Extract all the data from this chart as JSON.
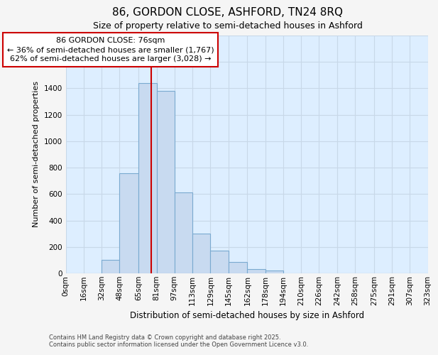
{
  "title_line1": "86, GORDON CLOSE, ASHFORD, TN24 8RQ",
  "title_line2": "Size of property relative to semi-detached houses in Ashford",
  "xlabel": "Distribution of semi-detached houses by size in Ashford",
  "ylabel": "Number of semi-detached properties",
  "bin_labels": [
    "0sqm",
    "16sqm",
    "32sqm",
    "48sqm",
    "65sqm",
    "81sqm",
    "97sqm",
    "113sqm",
    "129sqm",
    "145sqm",
    "162sqm",
    "178sqm",
    "194sqm",
    "210sqm",
    "226sqm",
    "242sqm",
    "258sqm",
    "275sqm",
    "291sqm",
    "307sqm",
    "323sqm"
  ],
  "bin_edges": [
    0,
    16,
    32,
    48,
    65,
    81,
    97,
    113,
    129,
    145,
    162,
    178,
    194,
    210,
    226,
    242,
    258,
    275,
    291,
    307,
    323
  ],
  "bar_heights": [
    0,
    0,
    100,
    760,
    1440,
    1380,
    610,
    300,
    170,
    85,
    30,
    20,
    0,
    0,
    0,
    0,
    0,
    0,
    0,
    0
  ],
  "bar_color": "#c8daf0",
  "bar_edge_color": "#7aaad0",
  "property_line_x": 76,
  "annotation_line1": "86 GORDON CLOSE: 76sqm",
  "annotation_line2": "← 36% of semi-detached houses are smaller (1,767)",
  "annotation_line3": "62% of semi-detached houses are larger (3,028) →",
  "annotation_box_facecolor": "#ffffff",
  "annotation_box_edgecolor": "#cc0000",
  "vline_color": "#cc0000",
  "ylim": [
    0,
    1800
  ],
  "yticks": [
    0,
    200,
    400,
    600,
    800,
    1000,
    1200,
    1400,
    1600,
    1800
  ],
  "grid_color": "#c8d8e8",
  "plot_bg_color": "#ddeeff",
  "fig_bg_color": "#f5f5f5",
  "footer_line1": "Contains HM Land Registry data © Crown copyright and database right 2025.",
  "footer_line2": "Contains public sector information licensed under the Open Government Licence v3.0.",
  "title_fontsize": 11,
  "subtitle_fontsize": 9,
  "axis_label_fontsize": 8,
  "tick_fontsize": 7.5,
  "annotation_fontsize": 8,
  "footer_fontsize": 6
}
